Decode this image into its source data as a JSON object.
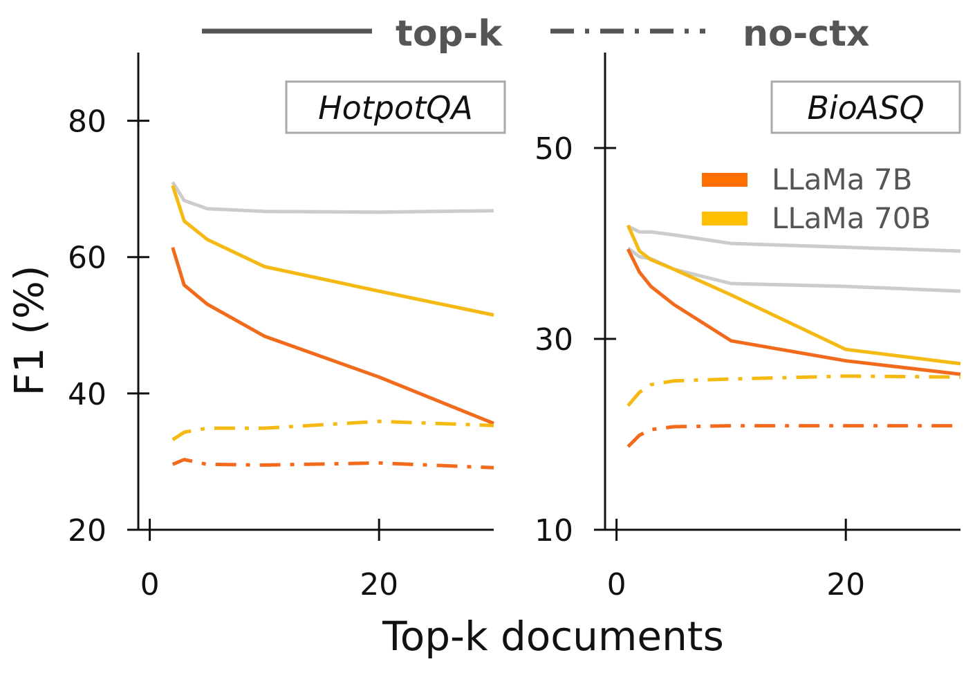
{
  "chart_data": [
    {
      "type": "line",
      "title": "HotpotQA",
      "xlabel": "Top-k documents",
      "ylabel": "F1 (%)",
      "xlim": [
        -1,
        30
      ],
      "ylim": [
        20,
        90
      ],
      "xticks": [
        0,
        20
      ],
      "yticks": [
        20,
        40,
        60,
        80
      ],
      "series": [
        {
          "name": "top-k",
          "model": "gray",
          "style": "solid",
          "x": [
            2,
            3,
            5,
            10,
            20,
            30
          ],
          "y": [
            71,
            68.3,
            67.1,
            66.7,
            66.6,
            66.8
          ]
        },
        {
          "name": "top-k",
          "model": "LLaMa 70B",
          "style": "solid",
          "x": [
            2,
            3,
            5,
            10,
            20,
            30
          ],
          "y": [
            70.5,
            65.3,
            62.6,
            58.6,
            55.0,
            51.5
          ]
        },
        {
          "name": "top-k",
          "model": "LLaMa 7B",
          "style": "solid",
          "x": [
            2,
            3,
            5,
            10,
            20,
            30
          ],
          "y": [
            61.4,
            55.9,
            53.1,
            48.4,
            42.4,
            35.6
          ]
        },
        {
          "name": "no-ctx",
          "model": "LLaMa 70B",
          "style": "dashdot",
          "x": [
            2,
            3,
            5,
            10,
            20,
            30
          ],
          "y": [
            33.2,
            34.3,
            34.9,
            34.9,
            35.9,
            35.3
          ]
        },
        {
          "name": "no-ctx",
          "model": "LLaMa 7B",
          "style": "dashdot",
          "x": [
            2,
            3,
            5,
            10,
            20,
            30
          ],
          "y": [
            29.6,
            30.3,
            29.6,
            29.5,
            29.8,
            29.1
          ]
        }
      ]
    },
    {
      "type": "line",
      "title": "BioASQ",
      "xlabel": "Top-k documents",
      "ylabel": "F1 (%)",
      "xlim": [
        -1,
        30
      ],
      "ylim": [
        10,
        60
      ],
      "xticks": [
        0,
        20
      ],
      "yticks": [
        10,
        30,
        50
      ],
      "series": [
        {
          "name": "top-k",
          "model": "gray",
          "style": "solid",
          "x": [
            1,
            2,
            3,
            5,
            10,
            20,
            30
          ],
          "y": [
            41.8,
            41.2,
            41.2,
            40.9,
            40.0,
            39.6,
            39.2
          ]
        },
        {
          "name": "top-k",
          "model": "gray",
          "style": "solid",
          "x": [
            1,
            2,
            3,
            5,
            10,
            20,
            30
          ],
          "y": [
            39.5,
            38.6,
            38.4,
            37.3,
            35.8,
            35.5,
            35.0
          ]
        },
        {
          "name": "top-k",
          "model": "LLaMa 70B",
          "style": "solid",
          "x": [
            1,
            2,
            3,
            5,
            10,
            20,
            30
          ],
          "y": [
            41.9,
            39.2,
            38.3,
            37.3,
            34.6,
            28.9,
            27.4
          ]
        },
        {
          "name": "top-k",
          "model": "LLaMa 7B",
          "style": "solid",
          "x": [
            1,
            2,
            3,
            5,
            10,
            20,
            30
          ],
          "y": [
            39.4,
            37.0,
            35.5,
            33.6,
            29.8,
            27.7,
            26.3
          ]
        },
        {
          "name": "no-ctx",
          "model": "LLaMa 70B",
          "style": "dashdot",
          "x": [
            1,
            2,
            3,
            5,
            10,
            20,
            30
          ],
          "y": [
            23.0,
            24.4,
            25.2,
            25.6,
            25.8,
            26.1,
            26.0
          ]
        },
        {
          "name": "no-ctx",
          "model": "LLaMa 7B",
          "style": "dashdot",
          "x": [
            1,
            2,
            3,
            5,
            10,
            20,
            30
          ],
          "y": [
            18.7,
            19.9,
            20.5,
            20.8,
            20.9,
            20.9,
            20.9
          ]
        }
      ]
    }
  ],
  "legend_top": [
    {
      "label": "top-k",
      "style": "solid",
      "color": "#555555"
    },
    {
      "label": "no-ctx",
      "style": "dashdot",
      "color": "#555555"
    }
  ],
  "legend_models": [
    {
      "label": "LLaMa 7B",
      "color": "#FF6F00"
    },
    {
      "label": "LLaMa 70B",
      "color": "#FFBF00"
    }
  ],
  "colors": {
    "LLaMa 7B": "#F26B1D",
    "LLaMa 70B": "#F5B914",
    "gray": "#CCCCCC",
    "axis": "#111111"
  }
}
